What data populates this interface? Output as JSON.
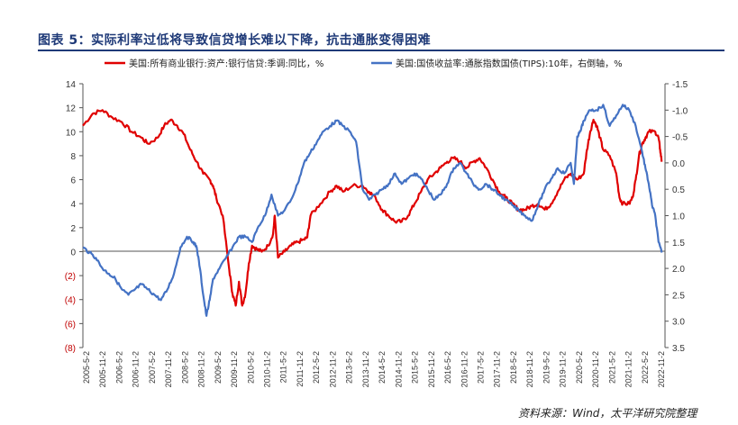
{
  "header": {
    "title": "图表 5：实际利率过低将导致信贷增长难以下降，抗击通胀变得困难"
  },
  "footer": {
    "source": "资料来源：Wind，太平洋研究院整理"
  },
  "chart_data": {
    "type": "line",
    "title": "图表 5：实际利率过低将导致信贷增长难以下降，抗击通胀变得困难",
    "xlabel": "",
    "ylabel": "",
    "y_left": {
      "range": [
        -8,
        14
      ],
      "ticks": [
        "14",
        "12",
        "10",
        "8",
        "6",
        "4",
        "2",
        "0",
        "(2)",
        "(4)",
        "(6)",
        "(8)"
      ]
    },
    "y_right": {
      "range": [
        -1.5,
        3.5
      ],
      "inverted": true,
      "ticks": [
        "-1.5",
        "-1.0",
        "-0.5",
        "0.0",
        "0.5",
        "1.0",
        "1.5",
        "2.0",
        "2.5",
        "3.0",
        "3.5"
      ]
    },
    "x_ticks": [
      "2005-5-2",
      "2005-11-2",
      "2006-5-2",
      "2006-11-2",
      "2007-5-2",
      "2007-11-2",
      "2008-5-2",
      "2008-11-2",
      "2009-5-2",
      "2009-11-2",
      "2010-5-2",
      "2010-11-2",
      "2011-5-2",
      "2011-11-2",
      "2012-5-2",
      "2012-11-2",
      "2013-5-2",
      "2013-11-2",
      "2014-5-2",
      "2014-11-2",
      "2015-5-2",
      "2015-11-2",
      "2016-5-2",
      "2016-11-2",
      "2017-5-2",
      "2017-11-2",
      "2018-5-2",
      "2018-11-2",
      "2019-5-2",
      "2019-11-2",
      "2020-5-2",
      "2020-11-2",
      "2021-5-2",
      "2021-11-2",
      "2022-5-2",
      "2022-11-2"
    ],
    "legend_position": "top",
    "grid": false,
    "series": [
      {
        "name": "美国:所有商业银行:资产:银行信贷:季调:同比，%",
        "axis": "left",
        "color": "#e00000",
        "points": [
          [
            2005.0,
            10.5
          ],
          [
            2005.3,
            11.5
          ],
          [
            2005.6,
            11.8
          ],
          [
            2005.9,
            11.2
          ],
          [
            2006.2,
            10.8
          ],
          [
            2006.5,
            10.0
          ],
          [
            2006.8,
            9.5
          ],
          [
            2007.0,
            9.0
          ],
          [
            2007.3,
            9.5
          ],
          [
            2007.5,
            10.5
          ],
          [
            2007.7,
            11.0
          ],
          [
            2007.9,
            10.5
          ],
          [
            2008.1,
            9.8
          ],
          [
            2008.3,
            8.5
          ],
          [
            2008.5,
            7.5
          ],
          [
            2008.7,
            6.5
          ],
          [
            2008.9,
            6.0
          ],
          [
            2009.0,
            5.5
          ],
          [
            2009.1,
            4.5
          ],
          [
            2009.3,
            3.0
          ],
          [
            2009.5,
            -1.5
          ],
          [
            2009.6,
            -3.5
          ],
          [
            2009.7,
            -4.5
          ],
          [
            2009.8,
            -2.5
          ],
          [
            2009.9,
            -4.5
          ],
          [
            2010.0,
            -3.5
          ],
          [
            2010.1,
            -1.0
          ],
          [
            2010.2,
            0.5
          ],
          [
            2010.35,
            0.2
          ],
          [
            2010.5,
            0.0
          ],
          [
            2010.7,
            0.5
          ],
          [
            2010.85,
            1.5
          ],
          [
            2010.9,
            3.0
          ],
          [
            2011.0,
            -0.5
          ],
          [
            2011.2,
            0.0
          ],
          [
            2011.4,
            0.5
          ],
          [
            2011.6,
            0.8
          ],
          [
            2011.8,
            1.0
          ],
          [
            2011.9,
            1.2
          ],
          [
            2012.0,
            3.0
          ],
          [
            2012.3,
            4.0
          ],
          [
            2012.6,
            5.0
          ],
          [
            2012.8,
            5.5
          ],
          [
            2013.0,
            5.0
          ],
          [
            2013.3,
            5.5
          ],
          [
            2013.6,
            5.5
          ],
          [
            2013.8,
            5.0
          ],
          [
            2014.0,
            4.5
          ],
          [
            2014.2,
            3.5
          ],
          [
            2014.4,
            3.0
          ],
          [
            2014.6,
            2.5
          ],
          [
            2014.8,
            2.5
          ],
          [
            2015.0,
            3.0
          ],
          [
            2015.2,
            4.0
          ],
          [
            2015.4,
            5.0
          ],
          [
            2015.6,
            6.0
          ],
          [
            2015.8,
            6.5
          ],
          [
            2016.0,
            7.0
          ],
          [
            2016.2,
            7.5
          ],
          [
            2016.4,
            7.8
          ],
          [
            2016.6,
            7.5
          ],
          [
            2016.8,
            7.0
          ],
          [
            2017.0,
            7.5
          ],
          [
            2017.2,
            7.8
          ],
          [
            2017.4,
            7.0
          ],
          [
            2017.6,
            6.0
          ],
          [
            2017.8,
            5.0
          ],
          [
            2018.0,
            4.5
          ],
          [
            2018.2,
            4.0
          ],
          [
            2018.4,
            3.5
          ],
          [
            2018.6,
            3.5
          ],
          [
            2018.8,
            3.8
          ],
          [
            2019.0,
            4.0
          ],
          [
            2019.2,
            3.5
          ],
          [
            2019.4,
            4.0
          ],
          [
            2019.6,
            5.0
          ],
          [
            2019.8,
            6.0
          ],
          [
            2020.0,
            6.5
          ],
          [
            2020.2,
            6.0
          ],
          [
            2020.4,
            6.5
          ],
          [
            2020.5,
            8.5
          ],
          [
            2020.6,
            10.0
          ],
          [
            2020.7,
            11.0
          ],
          [
            2020.8,
            10.5
          ],
          [
            2020.9,
            9.5
          ],
          [
            2021.0,
            8.5
          ],
          [
            2021.2,
            8.0
          ],
          [
            2021.4,
            6.5
          ],
          [
            2021.5,
            4.5
          ],
          [
            2021.6,
            4.0
          ],
          [
            2021.8,
            4.0
          ],
          [
            2021.9,
            4.5
          ],
          [
            2022.0,
            6.0
          ],
          [
            2022.1,
            8.0
          ],
          [
            2022.2,
            9.0
          ],
          [
            2022.3,
            9.5
          ],
          [
            2022.4,
            10.0
          ],
          [
            2022.6,
            10.0
          ],
          [
            2022.7,
            9.5
          ],
          [
            2022.75,
            8.5
          ],
          [
            2022.8,
            7.5
          ]
        ]
      },
      {
        "name": "美国:国债收益率:通胀指数国债(TIPS):10年，右倒轴，%",
        "axis": "right",
        "color": "#4472c4",
        "points": [
          [
            2005.0,
            1.6
          ],
          [
            2005.2,
            1.7
          ],
          [
            2005.4,
            1.8
          ],
          [
            2005.6,
            2.0
          ],
          [
            2005.8,
            2.1
          ],
          [
            2006.0,
            2.2
          ],
          [
            2006.2,
            2.4
          ],
          [
            2006.4,
            2.5
          ],
          [
            2006.6,
            2.4
          ],
          [
            2006.8,
            2.3
          ],
          [
            2007.0,
            2.4
          ],
          [
            2007.2,
            2.5
          ],
          [
            2007.4,
            2.6
          ],
          [
            2007.6,
            2.4
          ],
          [
            2007.8,
            2.1
          ],
          [
            2008.0,
            1.6
          ],
          [
            2008.2,
            1.4
          ],
          [
            2008.4,
            1.5
          ],
          [
            2008.5,
            1.6
          ],
          [
            2008.6,
            2.0
          ],
          [
            2008.7,
            2.5
          ],
          [
            2008.8,
            2.9
          ],
          [
            2008.9,
            2.6
          ],
          [
            2009.0,
            2.2
          ],
          [
            2009.2,
            2.0
          ],
          [
            2009.4,
            1.8
          ],
          [
            2009.6,
            1.6
          ],
          [
            2009.8,
            1.4
          ],
          [
            2010.0,
            1.4
          ],
          [
            2010.2,
            1.5
          ],
          [
            2010.4,
            1.2
          ],
          [
            2010.6,
            1.0
          ],
          [
            2010.8,
            0.6
          ],
          [
            2011.0,
            1.0
          ],
          [
            2011.2,
            0.9
          ],
          [
            2011.4,
            0.7
          ],
          [
            2011.6,
            0.4
          ],
          [
            2011.8,
            0.0
          ],
          [
            2012.0,
            -0.2
          ],
          [
            2012.2,
            -0.4
          ],
          [
            2012.4,
            -0.6
          ],
          [
            2012.6,
            -0.7
          ],
          [
            2012.8,
            -0.8
          ],
          [
            2013.0,
            -0.7
          ],
          [
            2013.2,
            -0.6
          ],
          [
            2013.4,
            -0.4
          ],
          [
            2013.6,
            0.5
          ],
          [
            2013.8,
            0.7
          ],
          [
            2014.0,
            0.6
          ],
          [
            2014.2,
            0.5
          ],
          [
            2014.4,
            0.4
          ],
          [
            2014.6,
            0.2
          ],
          [
            2014.8,
            0.4
          ],
          [
            2015.0,
            0.3
          ],
          [
            2015.2,
            0.2
          ],
          [
            2015.4,
            0.3
          ],
          [
            2015.6,
            0.5
          ],
          [
            2015.8,
            0.7
          ],
          [
            2016.0,
            0.6
          ],
          [
            2016.2,
            0.4
          ],
          [
            2016.4,
            0.1
          ],
          [
            2016.6,
            0.0
          ],
          [
            2016.8,
            0.2
          ],
          [
            2017.0,
            0.4
          ],
          [
            2017.2,
            0.5
          ],
          [
            2017.4,
            0.4
          ],
          [
            2017.6,
            0.5
          ],
          [
            2017.8,
            0.6
          ],
          [
            2018.0,
            0.7
          ],
          [
            2018.2,
            0.8
          ],
          [
            2018.4,
            0.9
          ],
          [
            2018.6,
            1.0
          ],
          [
            2018.8,
            1.1
          ],
          [
            2019.0,
            0.8
          ],
          [
            2019.2,
            0.5
          ],
          [
            2019.4,
            0.3
          ],
          [
            2019.6,
            0.1
          ],
          [
            2019.8,
            0.2
          ],
          [
            2020.0,
            0.0
          ],
          [
            2020.1,
            0.4
          ],
          [
            2020.2,
            -0.5
          ],
          [
            2020.3,
            -0.6
          ],
          [
            2020.4,
            -0.8
          ],
          [
            2020.6,
            -1.0
          ],
          [
            2020.8,
            -1.0
          ],
          [
            2021.0,
            -1.1
          ],
          [
            2021.2,
            -0.7
          ],
          [
            2021.4,
            -0.9
          ],
          [
            2021.6,
            -1.1
          ],
          [
            2021.8,
            -1.0
          ],
          [
            2022.0,
            -0.7
          ],
          [
            2022.2,
            -0.2
          ],
          [
            2022.3,
            0.1
          ],
          [
            2022.4,
            0.4
          ],
          [
            2022.5,
            0.8
          ],
          [
            2022.6,
            1.0
          ],
          [
            2022.7,
            1.5
          ],
          [
            2022.8,
            1.7
          ]
        ]
      }
    ]
  }
}
